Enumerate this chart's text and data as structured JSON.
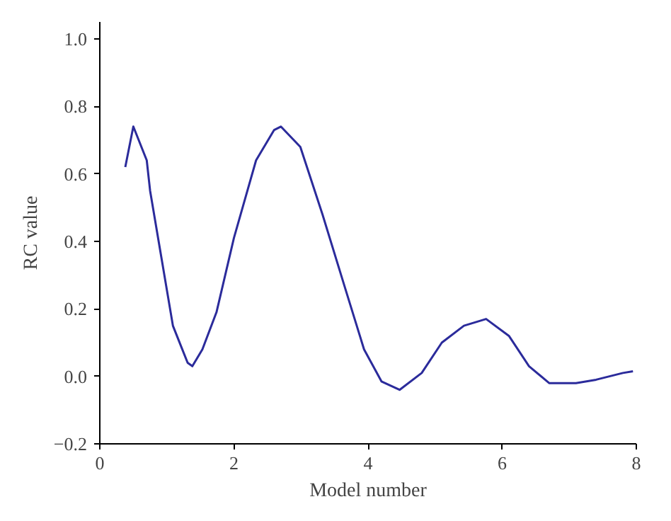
{
  "chart_data": {
    "type": "line",
    "xlabel": "Model number",
    "ylabel": "RC value",
    "xlim": [
      0,
      8
    ],
    "ylim": [
      -0.2,
      1.05
    ],
    "xticks": [
      0,
      2,
      4,
      6,
      8
    ],
    "yticks": [
      {
        "value": -0.2,
        "label": "−0.2"
      },
      {
        "value": 0,
        "label": "0.0"
      },
      {
        "value": 0.2,
        "label": "0.2"
      },
      {
        "value": 0.4,
        "label": "0.4"
      },
      {
        "value": 0.6,
        "label": "0.6"
      },
      {
        "value": 0.8,
        "label": "0.8"
      },
      {
        "value": 1.0,
        "label": "1.0"
      }
    ],
    "grid": false,
    "series": [
      {
        "color": "#2b2b9b",
        "x": [
          0.38,
          0.5,
          0.7,
          0.75,
          0.92,
          1.09,
          1.31,
          1.38,
          1.53,
          1.74,
          2.0,
          2.33,
          2.6,
          2.7,
          2.99,
          3.32,
          3.66,
          3.94,
          4.2,
          4.47,
          4.8,
          5.1,
          5.43,
          5.76,
          6.1,
          6.4,
          6.7,
          7.1,
          7.4,
          7.8,
          7.95
        ],
        "values": [
          0.62,
          0.74,
          0.64,
          0.55,
          0.35,
          0.15,
          0.04,
          0.03,
          0.08,
          0.19,
          0.41,
          0.64,
          0.73,
          0.74,
          0.68,
          0.48,
          0.26,
          0.08,
          -0.015,
          -0.04,
          0.01,
          0.1,
          0.15,
          0.17,
          0.12,
          0.03,
          -0.02,
          -0.02,
          -0.01,
          0.01,
          0.015
        ]
      }
    ]
  }
}
